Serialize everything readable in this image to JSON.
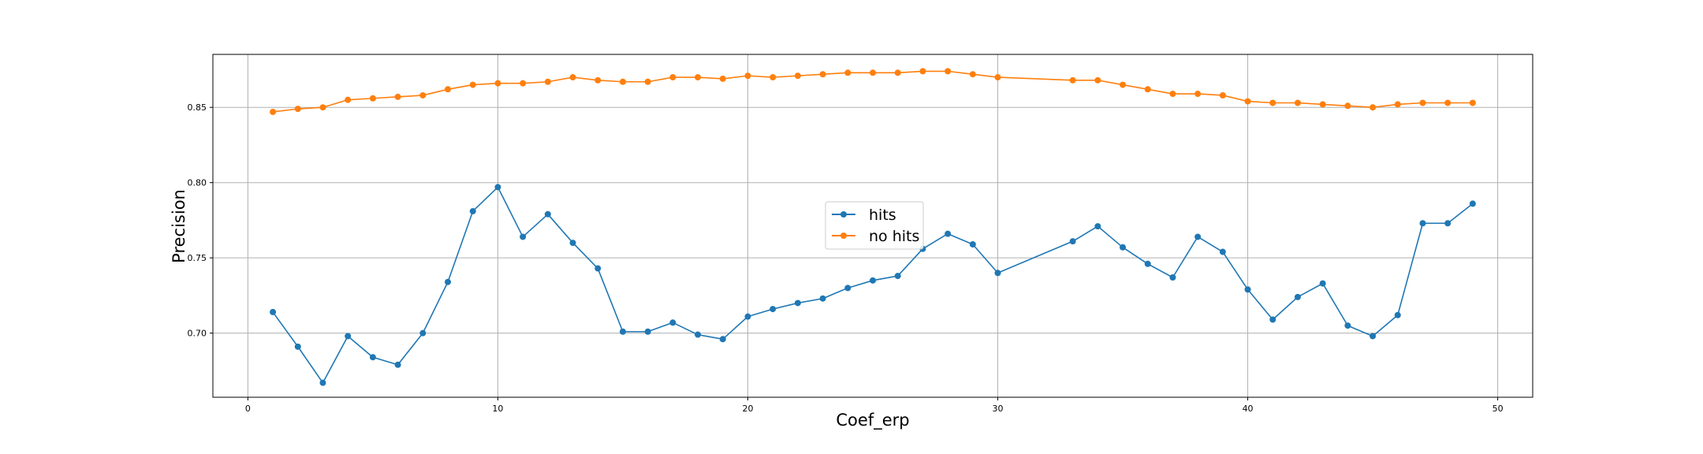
{
  "chart_data": {
    "type": "line",
    "title": "",
    "xlabel": "Coef_erp",
    "ylabel": "Precision",
    "xlim": [
      -1.4,
      51.4
    ],
    "ylim": [
      0.6574,
      0.8852
    ],
    "xticks": [
      0,
      10,
      20,
      30,
      40,
      50
    ],
    "yticks": [
      0.7,
      0.75,
      0.8,
      0.85
    ],
    "xtick_labels": [
      "0",
      "10",
      "20",
      "30",
      "40",
      "50"
    ],
    "ytick_labels": [
      "0.70",
      "0.75",
      "0.80",
      "0.85"
    ],
    "grid": true,
    "legend_position": "center",
    "x": [
      1,
      2,
      3,
      4,
      5,
      6,
      7,
      8,
      9,
      10,
      11,
      12,
      13,
      14,
      15,
      16,
      17,
      18,
      19,
      20,
      21,
      22,
      23,
      24,
      25,
      26,
      27,
      28,
      29,
      30,
      33,
      34,
      35,
      36,
      37,
      38,
      39,
      40,
      41,
      42,
      43,
      44,
      45,
      46,
      47,
      48,
      49
    ],
    "series": [
      {
        "name": "hits",
        "color": "#1f77b4",
        "values": [
          0.714,
          0.691,
          0.667,
          0.698,
          0.684,
          0.679,
          0.7,
          0.734,
          0.781,
          0.797,
          0.764,
          0.779,
          0.76,
          0.743,
          0.701,
          0.701,
          0.707,
          0.699,
          0.696,
          0.711,
          0.716,
          0.72,
          0.723,
          0.73,
          0.735,
          0.738,
          0.756,
          0.766,
          0.759,
          0.74,
          0.761,
          0.771,
          0.757,
          0.746,
          0.737,
          0.764,
          0.754,
          0.729,
          0.709,
          0.724,
          0.733,
          0.705,
          0.698,
          0.712,
          0.773,
          0.773,
          0.786
        ]
      },
      {
        "name": "no hits",
        "color": "#ff7f0e",
        "values": [
          0.847,
          0.849,
          0.85,
          0.855,
          0.856,
          0.857,
          0.858,
          0.862,
          0.865,
          0.866,
          0.866,
          0.867,
          0.87,
          0.868,
          0.867,
          0.867,
          0.87,
          0.87,
          0.869,
          0.871,
          0.87,
          0.871,
          0.872,
          0.873,
          0.873,
          0.873,
          0.874,
          0.874,
          0.872,
          0.87,
          0.868,
          0.868,
          0.865,
          0.862,
          0.859,
          0.859,
          0.858,
          0.854,
          0.853,
          0.853,
          0.852,
          0.851,
          0.85,
          0.852,
          0.853,
          0.853,
          0.853
        ]
      }
    ]
  }
}
